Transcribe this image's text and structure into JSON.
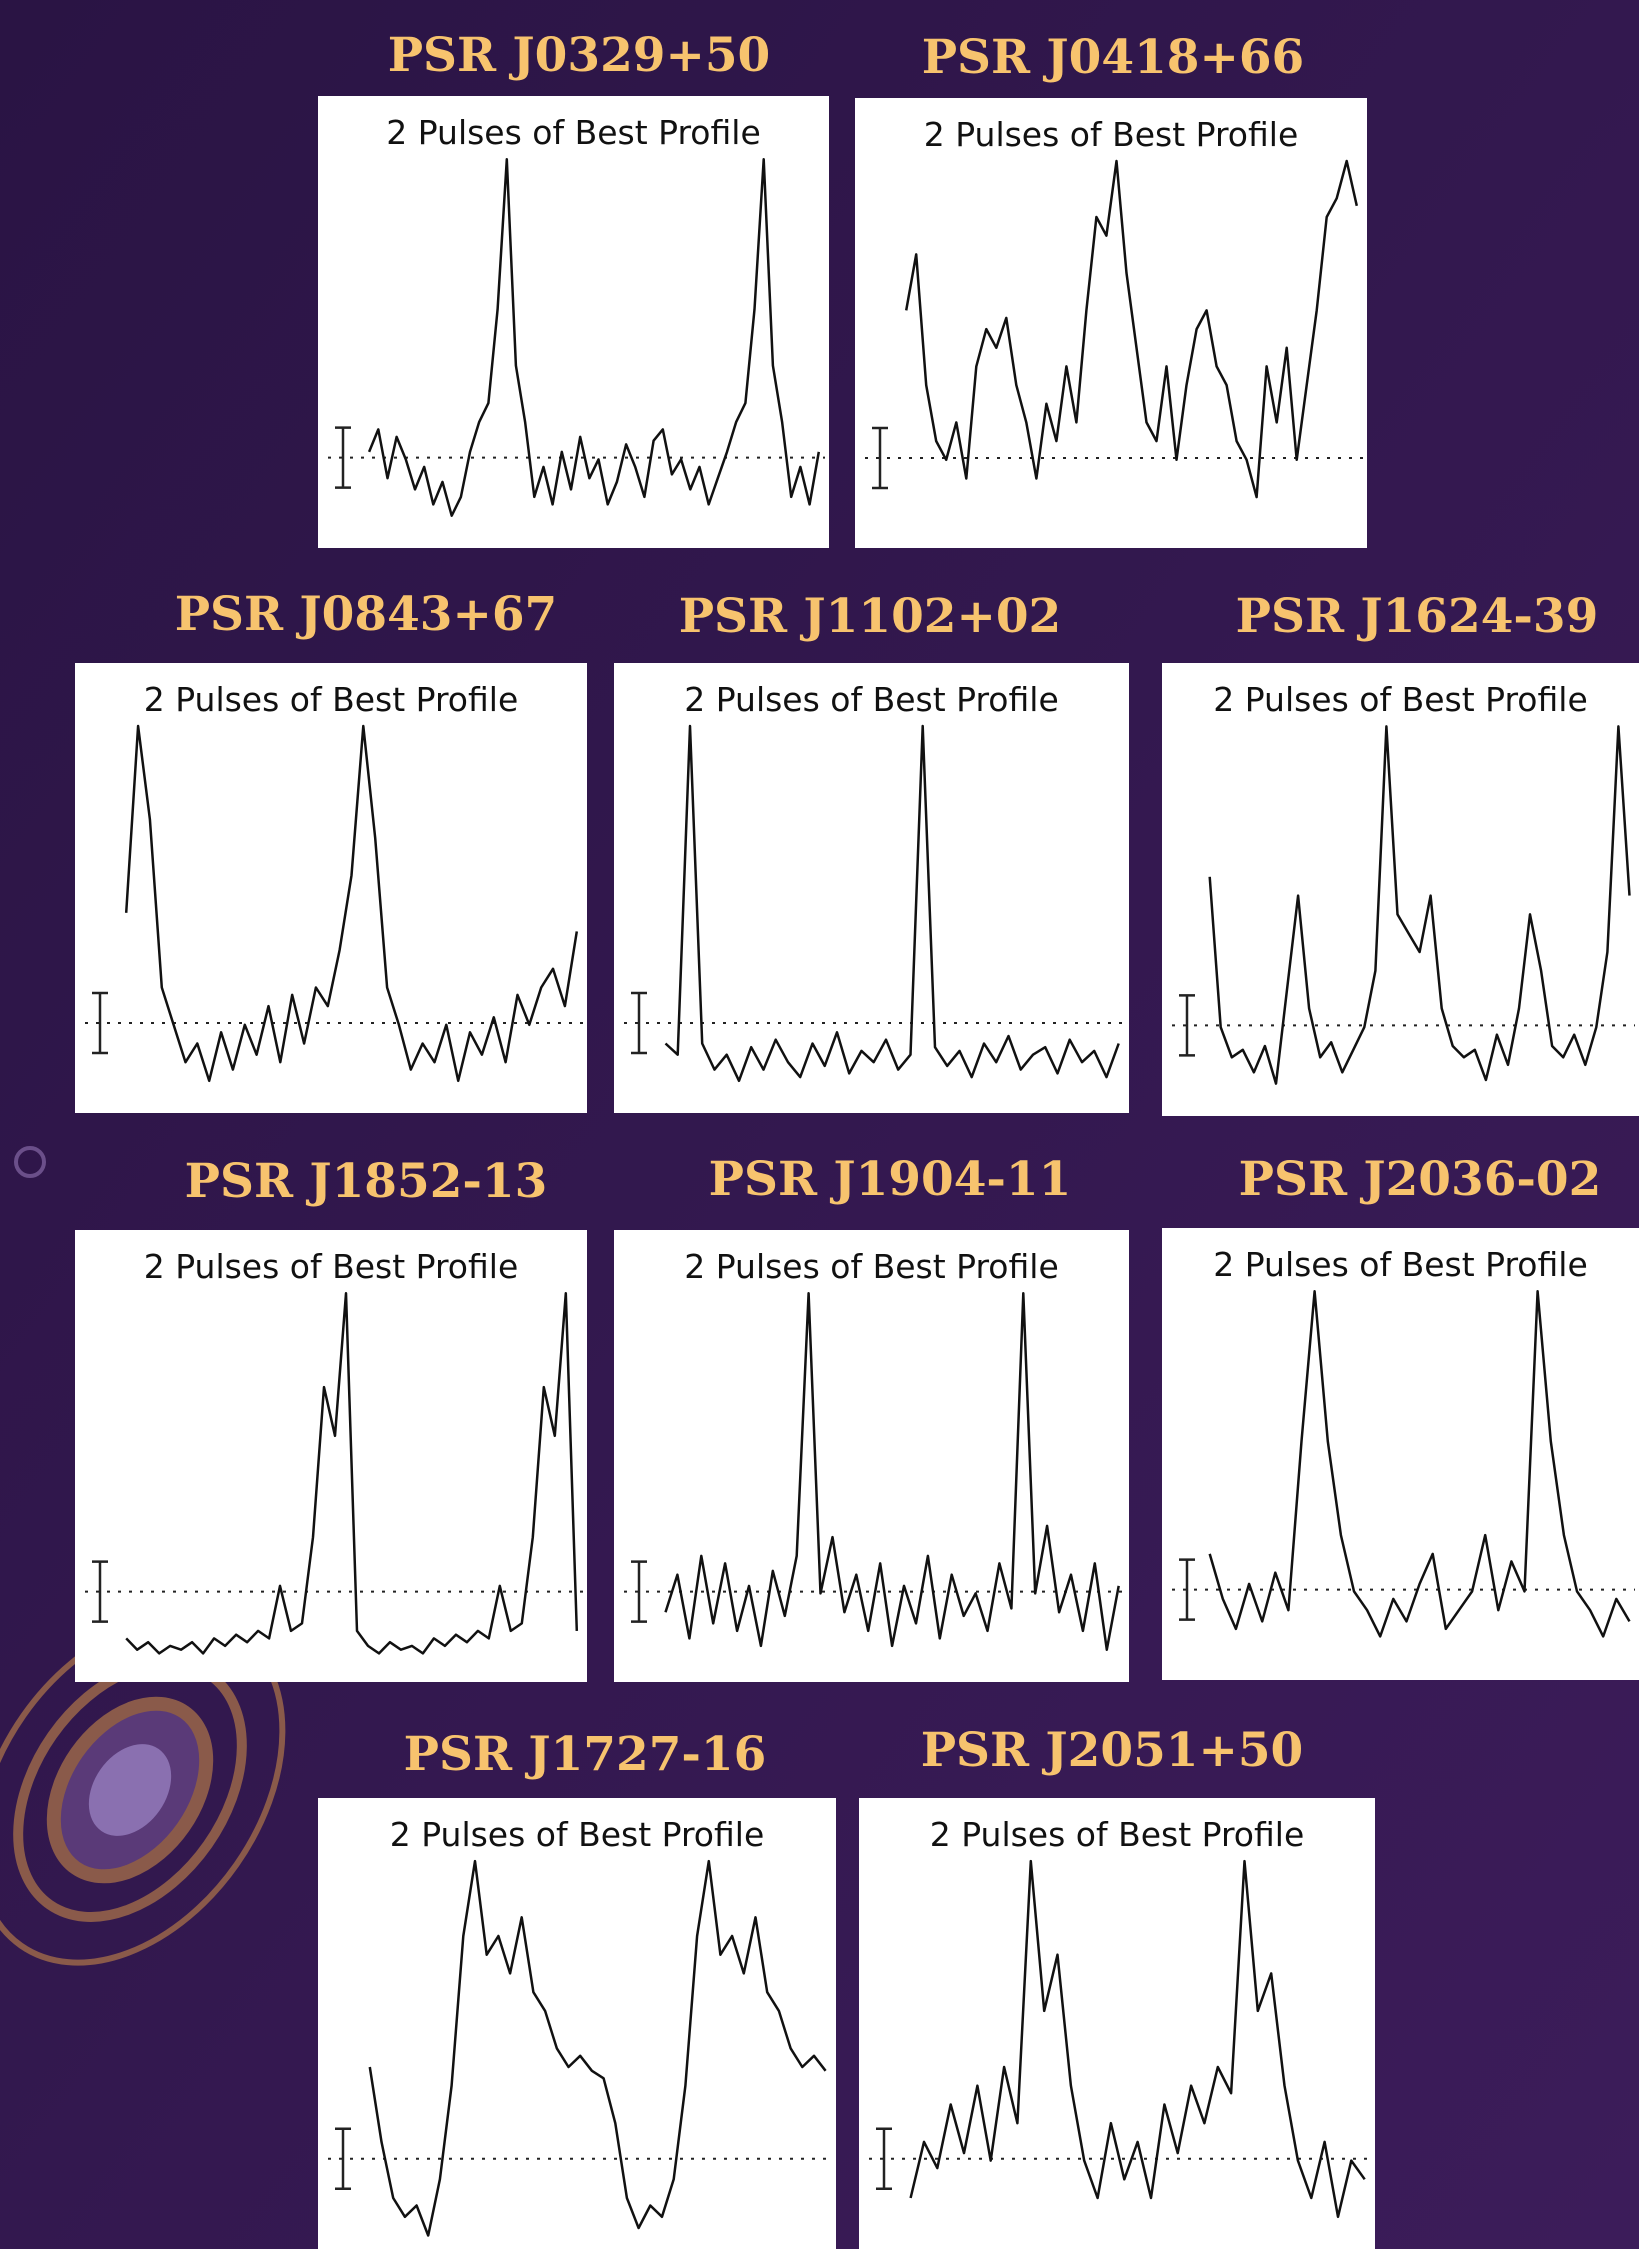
{
  "panels": [
    {
      "title": "PSR J0329+50",
      "subtitle": "2 Pulses of Best Profile",
      "profile": [
        22,
        28,
        15,
        26,
        20,
        12,
        18,
        8,
        14,
        5,
        10,
        22,
        30,
        35,
        60,
        100,
        45,
        30,
        10,
        18,
        8,
        22,
        12,
        26,
        15,
        20,
        8,
        14,
        24,
        18,
        10,
        25,
        28,
        16,
        20,
        12,
        18,
        8,
        15,
        22,
        30,
        35,
        60,
        100,
        45,
        30,
        10,
        18,
        8,
        22
      ]
    },
    {
      "title": "PSR J0418+66",
      "subtitle": "2 Pulses of Best Profile",
      "profile": [
        60,
        75,
        40,
        25,
        20,
        30,
        15,
        45,
        55,
        50,
        58,
        40,
        30,
        15,
        35,
        25,
        45,
        30,
        60,
        85,
        80,
        100,
        70,
        50,
        30,
        25,
        45,
        20,
        40,
        55,
        60,
        45,
        40,
        25,
        20,
        10,
        45,
        30,
        50,
        20,
        40,
        60,
        85,
        90,
        100,
        88
      ]
    },
    {
      "title": "PSR J0843+67",
      "subtitle": "2 Pulses of Best Profile",
      "profile": [
        50,
        100,
        75,
        30,
        20,
        10,
        15,
        5,
        18,
        8,
        20,
        12,
        25,
        10,
        28,
        15,
        30,
        25,
        40,
        60,
        100,
        70,
        30,
        20,
        8,
        15,
        10,
        20,
        5,
        18,
        12,
        22,
        10,
        28,
        20,
        30,
        35,
        25,
        45
      ]
    },
    {
      "title": "PSR J1102+02",
      "subtitle": "2 Pulses of Best Profile",
      "profile": [
        15,
        12,
        100,
        15,
        8,
        12,
        5,
        14,
        8,
        16,
        10,
        6,
        15,
        9,
        18,
        7,
        13,
        10,
        16,
        8,
        12,
        100,
        14,
        9,
        13,
        6,
        15,
        10,
        17,
        8,
        12,
        14,
        7,
        16,
        10,
        13,
        6,
        15
      ]
    },
    {
      "title": "PSR J1624-39",
      "subtitle": "2 Pulses of Best Profile",
      "profile": [
        60,
        20,
        12,
        14,
        8,
        15,
        5,
        30,
        55,
        25,
        12,
        16,
        8,
        14,
        20,
        35,
        100,
        50,
        45,
        40,
        55,
        25,
        15,
        12,
        14,
        6,
        18,
        10,
        25,
        50,
        35,
        15,
        12,
        18,
        10,
        20,
        40,
        100,
        55
      ]
    },
    {
      "title": "PSR J1852-13",
      "subtitle": "2 Pulses of Best Profile",
      "profile": [
        8,
        5,
        7,
        4,
        6,
        5,
        7,
        4,
        8,
        6,
        9,
        7,
        10,
        8,
        22,
        10,
        12,
        35,
        75,
        62,
        100,
        10,
        6,
        4,
        7,
        5,
        6,
        4,
        8,
        6,
        9,
        7,
        10,
        8,
        22,
        10,
        12,
        35,
        75,
        62,
        100,
        10
      ]
    },
    {
      "title": "PSR J1904-11",
      "subtitle": "2 Pulses of Best Profile",
      "profile": [
        15,
        25,
        8,
        30,
        12,
        28,
        10,
        22,
        6,
        26,
        14,
        30,
        100,
        20,
        35,
        15,
        25,
        10,
        28,
        6,
        22,
        12,
        30,
        8,
        25,
        14,
        20,
        10,
        28,
        16,
        100,
        20,
        38,
        15,
        25,
        10,
        28,
        5,
        22
      ]
    },
    {
      "title": "PSR J2036-02",
      "subtitle": "2 Pulses of Best Profile",
      "profile": [
        30,
        18,
        10,
        22,
        12,
        25,
        15,
        60,
        100,
        60,
        35,
        20,
        15,
        8,
        18,
        12,
        22,
        30,
        10,
        15,
        20,
        35,
        15,
        28,
        20,
        100,
        60,
        35,
        20,
        15,
        8,
        18,
        12
      ]
    },
    {
      "title": "PSR J1727-16",
      "subtitle": "2 Pulses of Best Profile",
      "profile": [
        45,
        25,
        10,
        5,
        8,
        0,
        15,
        40,
        80,
        100,
        75,
        80,
        70,
        85,
        65,
        60,
        50,
        45,
        48,
        44,
        42,
        30,
        10,
        2,
        8,
        5,
        15,
        40,
        80,
        100,
        75,
        80,
        70,
        85,
        65,
        60,
        50,
        45,
        48,
        44
      ]
    },
    {
      "title": "PSR J2051+50",
      "subtitle": "2 Pulses of Best Profile",
      "profile": [
        10,
        25,
        18,
        35,
        22,
        40,
        20,
        45,
        30,
        100,
        60,
        75,
        40,
        20,
        10,
        30,
        15,
        25,
        10,
        35,
        22,
        40,
        30,
        45,
        38,
        100,
        60,
        70,
        40,
        20,
        10,
        25,
        5,
        20,
        15
      ]
    }
  ]
}
